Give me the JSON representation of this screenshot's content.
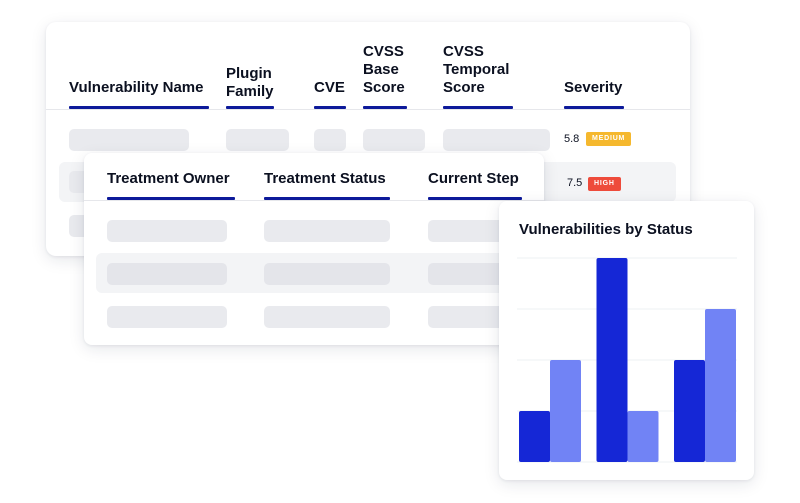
{
  "vuln_table": {
    "columns": [
      {
        "label": "Vulnerability Name"
      },
      {
        "label": "Plugin\nFamily"
      },
      {
        "label": "CVE"
      },
      {
        "label": "CVSS\nBase\nScore"
      },
      {
        "label": "CVSS\nTemporal\nScore"
      },
      {
        "label": "Severity"
      }
    ],
    "rows": [
      {
        "score": "5.8",
        "severity": "MEDIUM",
        "severity_color": "#f5b82e"
      },
      {
        "score": "7.5",
        "severity": "HIGH",
        "severity_color": "#ee4b3b"
      }
    ]
  },
  "treatment_table": {
    "columns": [
      {
        "label": "Treatment Owner"
      },
      {
        "label": "Treatment Status"
      },
      {
        "label": "Current Step"
      }
    ]
  },
  "chart": {
    "title": "Vulnerabilities by Status"
  },
  "chart_data": {
    "type": "bar",
    "title": "Vulnerabilities by Status",
    "categories": [
      "",
      "",
      ""
    ],
    "series": [
      {
        "values": [
          1,
          4,
          2
        ],
        "color": "#1527d6"
      },
      {
        "values": [
          2,
          1,
          3
        ],
        "color": "#7183f5"
      }
    ],
    "ylim": [
      0,
      4
    ],
    "grid": true
  },
  "colors": {
    "accent_underline": "#0d1a9a",
    "skeleton": "#e9eaee"
  }
}
